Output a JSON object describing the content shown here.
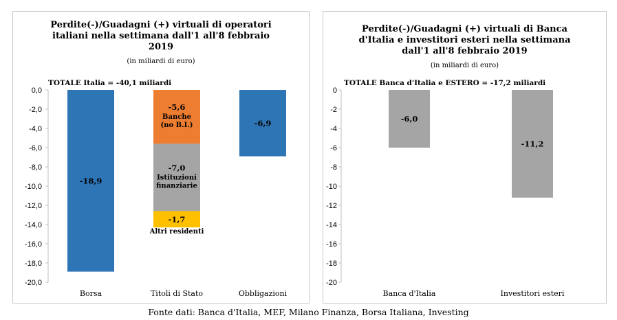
{
  "chart_data": [
    {
      "type": "bar",
      "title": "Perdite(-)/Guadagni (+) virtuali di operatori italiani nella settimana dall'1 all'8 febbraio 2019",
      "subtitle": "(in miliardi di euro)",
      "total_label": "TOTALE Italia = -40,1 miliardi",
      "categories": [
        "Borsa",
        "Titoli di Stato",
        "Obbligazioni"
      ],
      "ylim": [
        -20,
        0
      ],
      "yticks": [
        "0,0",
        "-2,0",
        "-4,0",
        "-6,0",
        "-8,0",
        "-10,0",
        "-12,0",
        "-14,0",
        "-16,0",
        "-18,0",
        "-20,0"
      ],
      "grid": false,
      "bars": [
        {
          "category": "Borsa",
          "value": -18.9,
          "label": "-18,9",
          "color": "#2e75b6"
        },
        {
          "category": "Titoli di Stato",
          "stacked": true,
          "segments": [
            {
              "value": -5.6,
              "label": "-5,6",
              "series": "Banche (no B.I.)",
              "color": "#ed7d31"
            },
            {
              "value": -7.0,
              "label": "-7,0",
              "series": "Istituzioni finanziarie",
              "color": "#a5a5a5"
            },
            {
              "value": -1.7,
              "label": "-1,7",
              "series": "Altri residenti",
              "color": "#ffc000"
            }
          ]
        },
        {
          "category": "Obbligazioni",
          "value": -6.9,
          "label": "-6,9",
          "color": "#2e75b6"
        }
      ]
    },
    {
      "type": "bar",
      "title": "Perdite(-)/Guadagni (+)  virtuali di Banca d'Italia e investitori esteri  nella settimana dall'1 all'8 febbraio 2019",
      "subtitle": "(in miliardi di euro)",
      "total_label": "TOTALE Banca d'Italia e ESTERO = -17,2 miliardi",
      "categories": [
        "Banca d'Italia",
        "Investitori esteri"
      ],
      "ylim": [
        -20,
        0
      ],
      "yticks": [
        "0",
        "-2",
        "-4",
        "-6",
        "-8",
        "-10",
        "-12",
        "-14",
        "-16",
        "-18",
        "-20"
      ],
      "grid": false,
      "bars": [
        {
          "category": "Banca d'Italia",
          "value": -6.0,
          "label": "-6,0",
          "color": "#a5a5a5"
        },
        {
          "category": "Investitori esteri",
          "value": -11.2,
          "label": "-11,2",
          "color": "#a5a5a5"
        }
      ]
    }
  ],
  "left": {
    "title_lines": [
      "Perdite(-)/Guadagni (+) virtuali di operatori",
      "italiani nella settimana dall'1 all'8 febbraio",
      "2019"
    ],
    "subtitle": "(in miliardi di euro)",
    "total": "TOTALE  Italia = -40,1 miliardi"
  },
  "right": {
    "title_lines": [
      "Perdite(-)/Guadagni (+)  virtuali di Banca",
      "d'Italia e investitori esteri  nella settimana",
      "dall'1 all'8 febbraio 2019"
    ],
    "subtitle": "(in miliardi di euro)",
    "total": "TOTALE Banca d'Italia e ESTERO = -17,2 miliardi"
  },
  "source": "Fonte dati: Banca d'Italia, MEF, Milano Finanza, Borsa Italiana, Investing"
}
